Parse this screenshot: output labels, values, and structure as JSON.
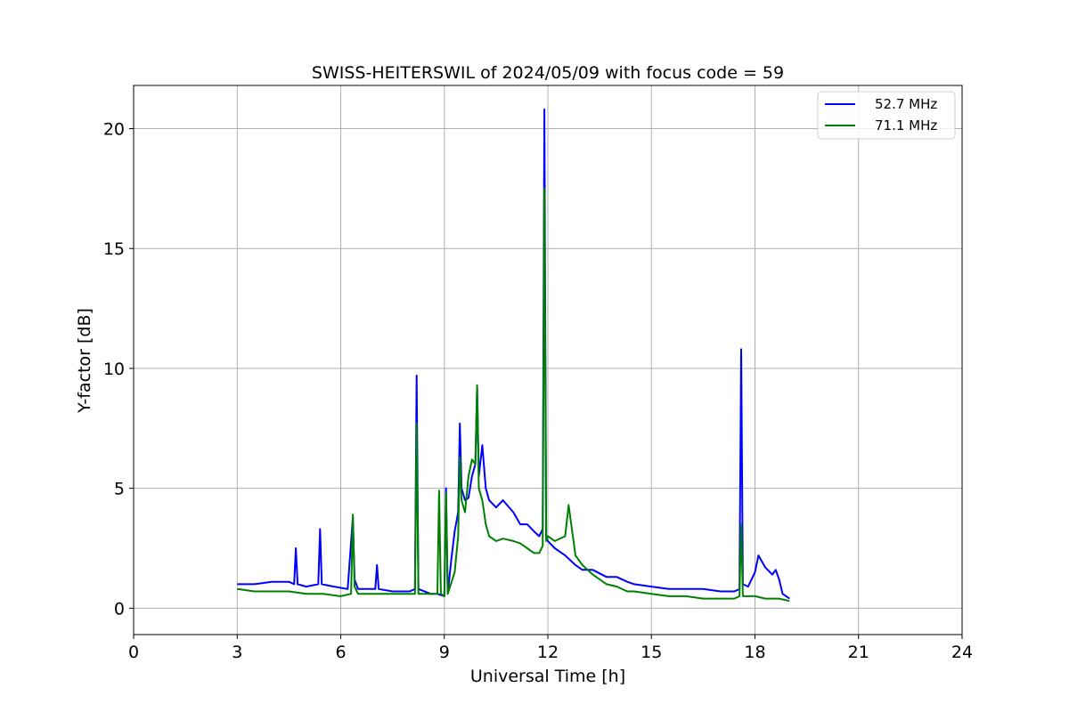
{
  "chart_data": {
    "type": "line",
    "title": "SWISS-HEITERSWIL of 2024/05/09 with focus code = 59",
    "xlabel": "Universal Time [h]",
    "ylabel": "Y-factor [dB]",
    "xlim": [
      0,
      24
    ],
    "ylim": [
      -1.1,
      21.8
    ],
    "xticks": [
      "0",
      "3",
      "6",
      "9",
      "12",
      "15",
      "18",
      "21",
      "24"
    ],
    "yticks": [
      "0",
      "5",
      "10",
      "15",
      "20"
    ],
    "grid": true,
    "legend_position": "top-right",
    "series": [
      {
        "name": "52.7 MHz",
        "color": "#0000ff",
        "x": [
          3.0,
          3.5,
          4.0,
          4.5,
          4.65,
          4.7,
          4.75,
          5.0,
          5.35,
          5.4,
          5.45,
          5.8,
          6.2,
          6.35,
          6.4,
          6.5,
          7.0,
          7.05,
          7.1,
          7.5,
          8.0,
          8.15,
          8.2,
          8.25,
          8.6,
          8.8,
          9.0,
          9.05,
          9.1,
          9.2,
          9.3,
          9.4,
          9.45,
          9.5,
          9.6,
          9.7,
          9.8,
          9.9,
          9.95,
          10.0,
          10.1,
          10.2,
          10.3,
          10.5,
          10.7,
          11.0,
          11.2,
          11.4,
          11.6,
          11.75,
          11.85,
          11.9,
          11.95,
          12.0,
          12.2,
          12.5,
          12.8,
          13.0,
          13.3,
          13.7,
          14.0,
          14.3,
          14.5,
          15.0,
          15.5,
          16.0,
          16.5,
          17.0,
          17.4,
          17.55,
          17.6,
          17.65,
          17.8,
          18.0,
          18.1,
          18.3,
          18.5,
          18.6,
          18.7,
          18.8,
          19.0
        ],
        "y": [
          1.0,
          1.0,
          1.1,
          1.1,
          1.0,
          2.5,
          1.0,
          0.9,
          1.0,
          3.3,
          1.0,
          0.9,
          0.8,
          3.8,
          1.2,
          0.8,
          0.8,
          1.8,
          0.8,
          0.7,
          0.7,
          0.8,
          9.7,
          0.8,
          0.6,
          0.6,
          0.5,
          5.0,
          0.6,
          2.0,
          3.2,
          4.0,
          7.7,
          5.0,
          4.5,
          4.6,
          5.5,
          6.0,
          9.2,
          5.5,
          6.8,
          5.0,
          4.5,
          4.2,
          4.5,
          4.0,
          3.5,
          3.5,
          3.2,
          3.0,
          3.3,
          20.8,
          3.0,
          2.8,
          2.5,
          2.2,
          1.8,
          1.6,
          1.6,
          1.3,
          1.3,
          1.1,
          1.0,
          0.9,
          0.8,
          0.8,
          0.8,
          0.7,
          0.7,
          0.8,
          10.8,
          1.0,
          0.9,
          1.5,
          2.2,
          1.7,
          1.4,
          1.6,
          1.2,
          0.6,
          0.4
        ]
      },
      {
        "name": "71.1 MHz",
        "color": "#008000",
        "x": [
          3.0,
          3.5,
          4.0,
          4.5,
          5.0,
          5.5,
          6.0,
          6.3,
          6.35,
          6.4,
          6.5,
          7.0,
          7.5,
          8.0,
          8.15,
          8.2,
          8.25,
          8.6,
          8.8,
          8.85,
          8.9,
          9.0,
          9.05,
          9.1,
          9.3,
          9.4,
          9.45,
          9.5,
          9.6,
          9.7,
          9.8,
          9.9,
          9.95,
          10.0,
          10.1,
          10.2,
          10.3,
          10.5,
          10.7,
          11.0,
          11.2,
          11.4,
          11.6,
          11.75,
          11.85,
          11.9,
          11.95,
          12.0,
          12.2,
          12.5,
          12.6,
          12.8,
          13.0,
          13.3,
          13.7,
          14.0,
          14.3,
          14.5,
          15.0,
          15.5,
          16.0,
          16.5,
          17.0,
          17.4,
          17.55,
          17.6,
          17.65,
          17.8,
          18.0,
          18.3,
          18.5,
          18.7,
          19.0
        ],
        "y": [
          0.8,
          0.7,
          0.7,
          0.7,
          0.6,
          0.6,
          0.5,
          0.6,
          3.9,
          0.9,
          0.6,
          0.6,
          0.6,
          0.6,
          0.6,
          7.7,
          0.6,
          0.6,
          0.6,
          4.9,
          0.6,
          0.5,
          4.8,
          0.6,
          1.5,
          3.0,
          6.3,
          4.5,
          4.0,
          5.5,
          6.2,
          6.0,
          9.3,
          5.0,
          4.5,
          3.5,
          3.0,
          2.8,
          2.9,
          2.8,
          2.7,
          2.5,
          2.3,
          2.3,
          2.6,
          17.5,
          2.8,
          3.0,
          2.8,
          3.0,
          4.3,
          2.2,
          1.8,
          1.4,
          1.0,
          0.9,
          0.7,
          0.7,
          0.6,
          0.5,
          0.5,
          0.4,
          0.4,
          0.4,
          0.5,
          3.5,
          0.5,
          0.5,
          0.5,
          0.4,
          0.4,
          0.4,
          0.3
        ]
      }
    ]
  }
}
